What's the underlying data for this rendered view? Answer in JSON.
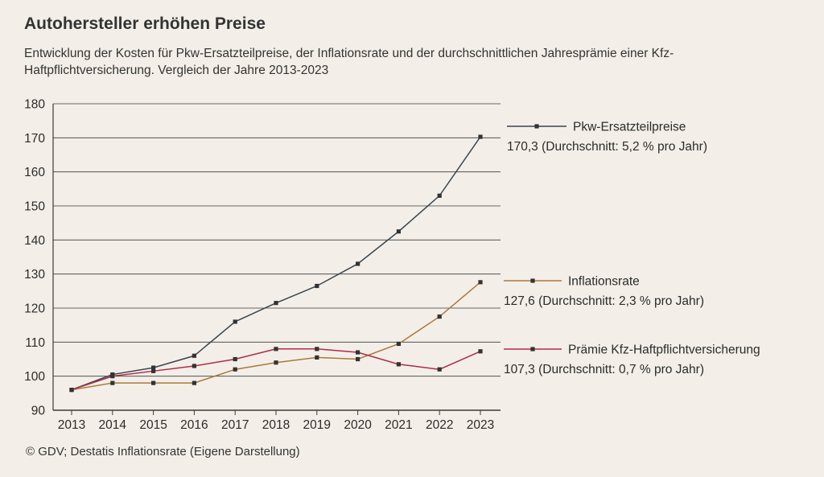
{
  "title": "Autohersteller erhöhen Preise",
  "subtitle": "Entwicklung der Kosten für Pkw-Ersatzteilpreise, der Inflationsrate und der durchschnittlichen Jahresprämie einer Kfz-Haftpflichtversicherung. Vergleich der Jahre 2013-2023",
  "source": "© GDV; Destatis Inflationsrate (Eigene Darstellung)",
  "chart_data": {
    "type": "line",
    "title": "Autohersteller erhöhen Preise",
    "xlabel": "",
    "ylabel": "",
    "x": [
      "2013",
      "2014",
      "2015",
      "2016",
      "2017",
      "2018",
      "2019",
      "2020",
      "2021",
      "2022",
      "2023"
    ],
    "ylim": [
      90,
      180
    ],
    "yticks": [
      "90",
      "100",
      "110",
      "120",
      "130",
      "140",
      "150",
      "160",
      "170",
      "180"
    ],
    "grid": true,
    "series": [
      {
        "name": "Pkw-Ersatzteilpreise",
        "end_label": "170,3 (Durchschnitt: 5,2 % pro Jahr)",
        "color": "#3b4650",
        "values": [
          96,
          100.5,
          102.5,
          106,
          116,
          121.5,
          126.5,
          133,
          142.5,
          153,
          170.3
        ]
      },
      {
        "name": "Inflationsrate",
        "end_label": "127,6 (Durchschnitt: 2,3 % pro Jahr)",
        "color": "#a9793d",
        "values": [
          96,
          98,
          98,
          98,
          102,
          104,
          105.5,
          105,
          109.5,
          117.5,
          127.6
        ]
      },
      {
        "name": "Prämie Kfz-Haftpflichtversicherung",
        "end_label": "107,3 (Durchschnitt: 0,7 % pro Jahr)",
        "color": "#b02a4b",
        "values": [
          96,
          100,
          101.5,
          103,
          105,
          108,
          108,
          107,
          103.5,
          102,
          107.3
        ]
      }
    ]
  }
}
